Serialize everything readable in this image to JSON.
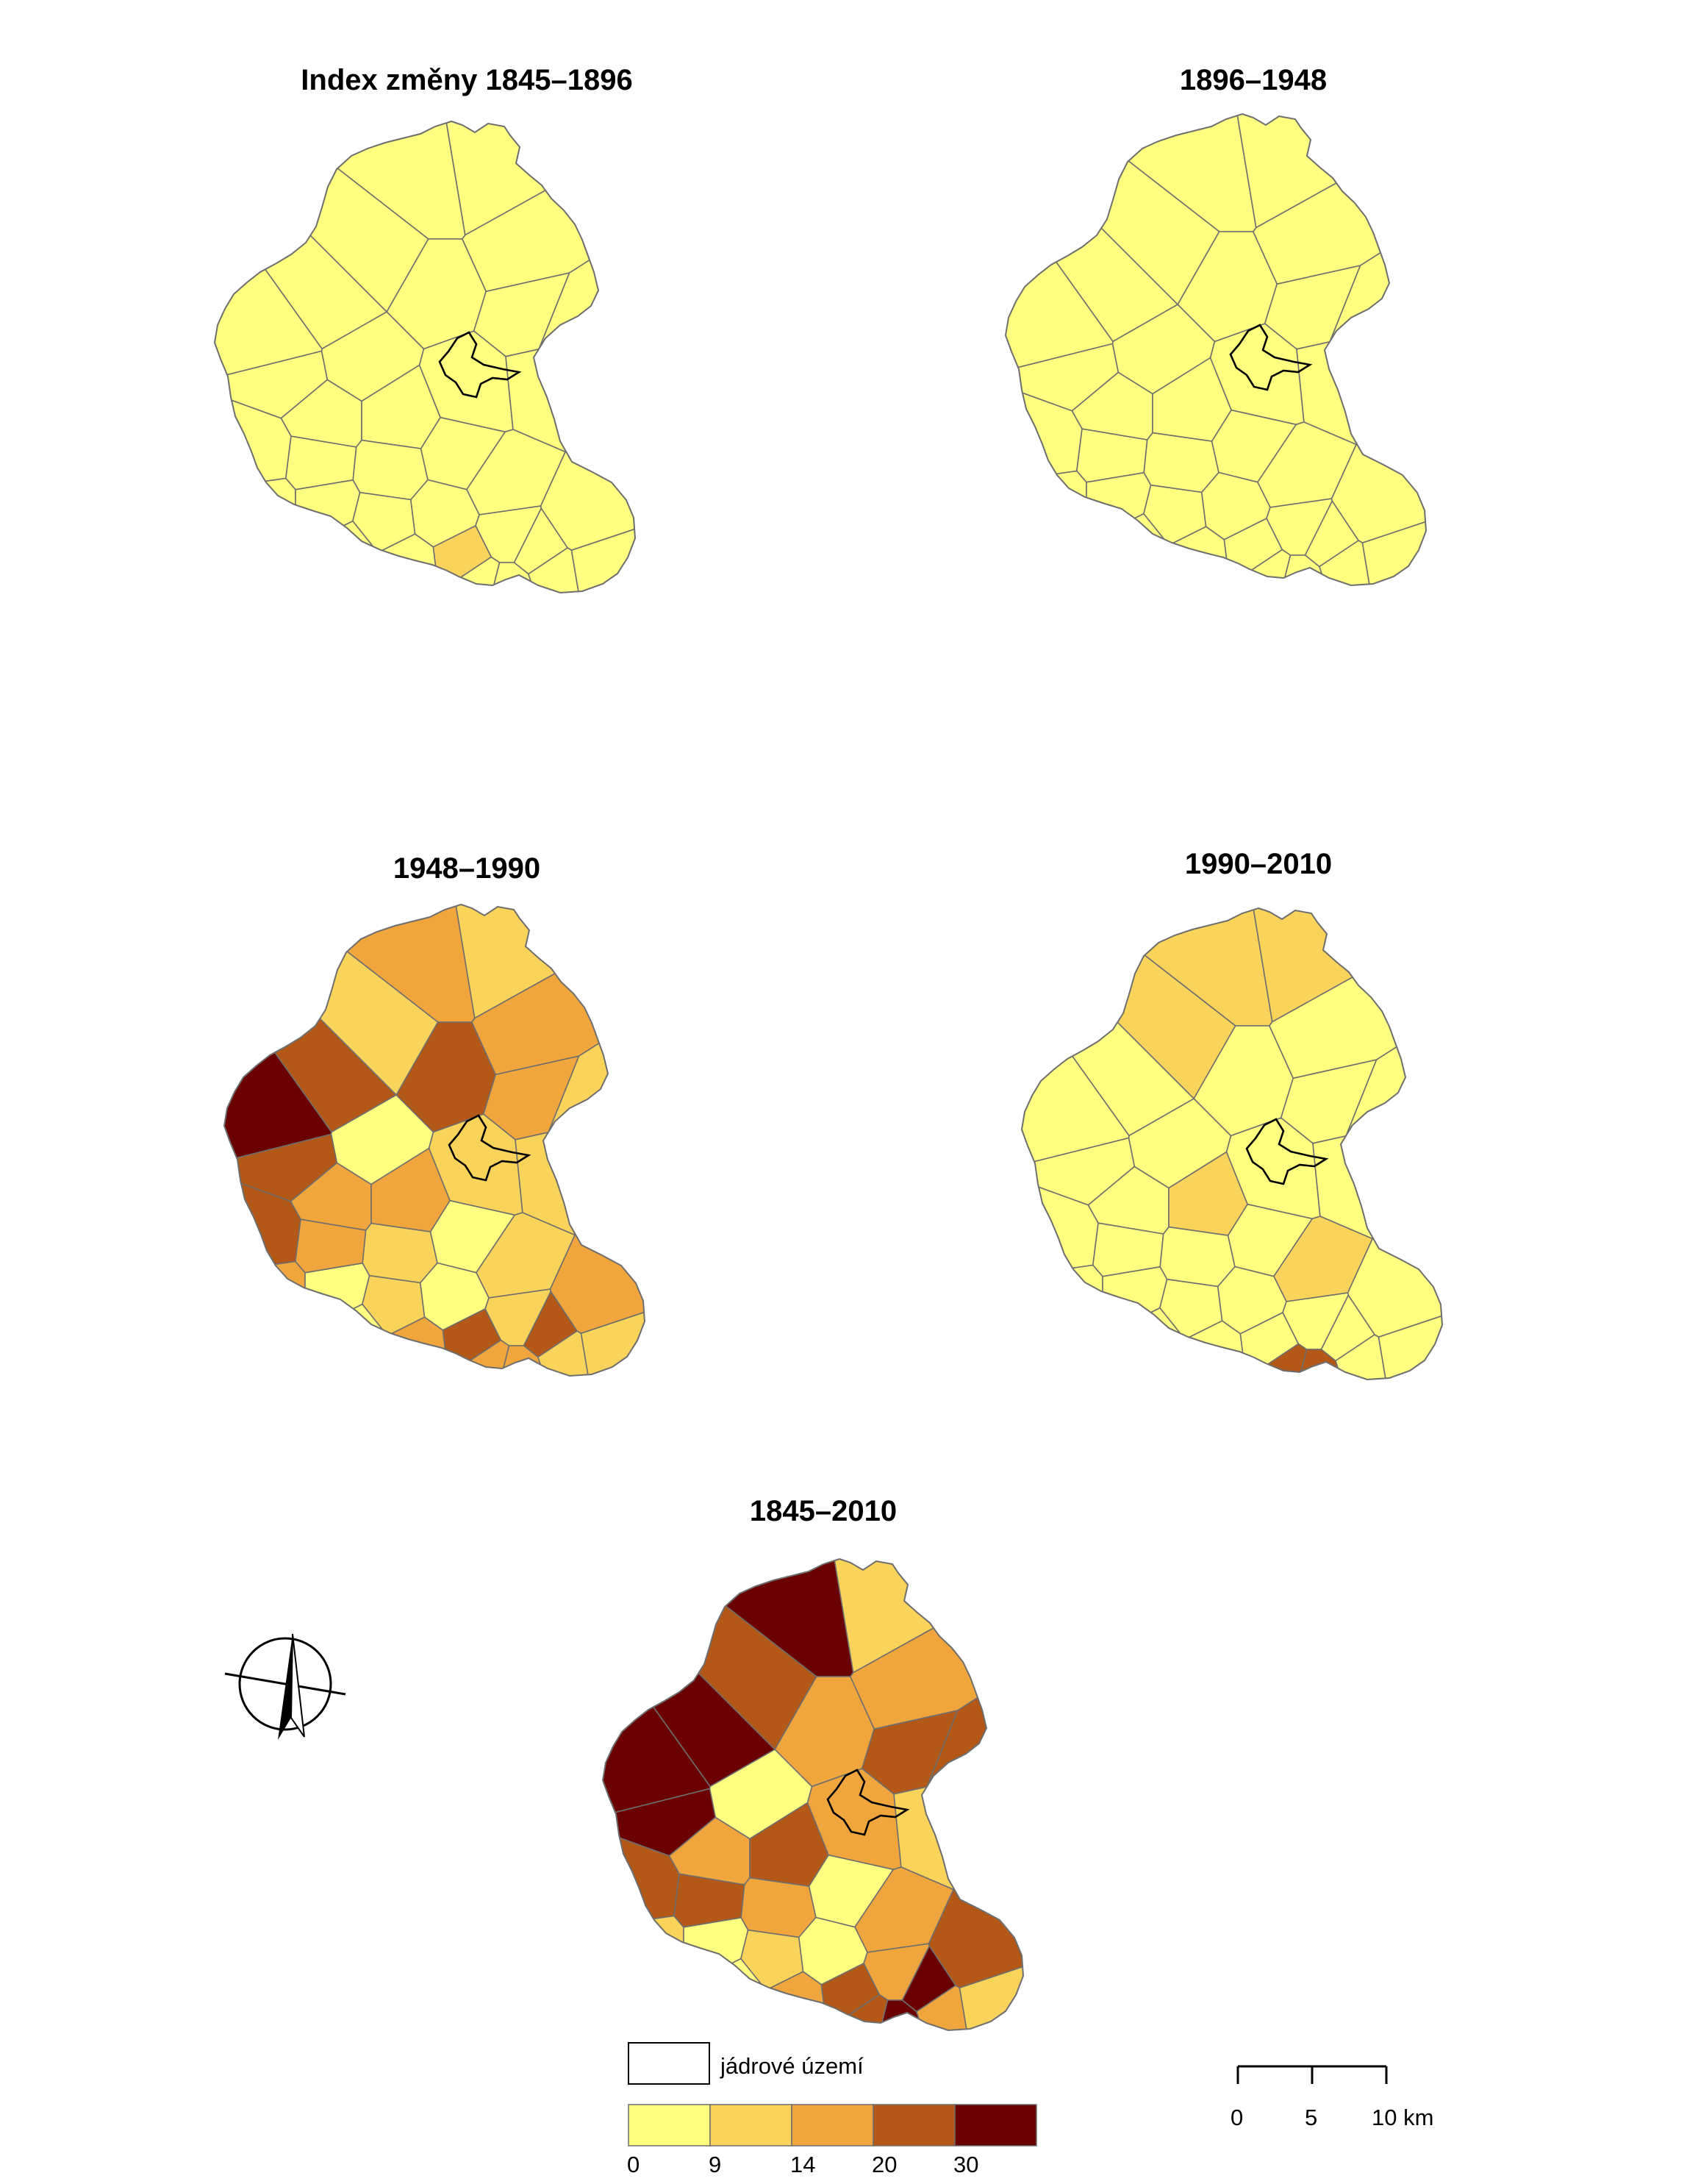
{
  "palette": {
    "c0": "#ffff80",
    "c1": "#fad35a",
    "c2": "#f0a63c",
    "c3": "#b35817",
    "c4": "#6b0000",
    "outline": "#6e6e6e",
    "core_outline": "#000000"
  },
  "maps": [
    {
      "id": "m1845_1896",
      "title": "Index změny 1845–1896",
      "classes": [
        0,
        0,
        0,
        0,
        0,
        0,
        0,
        0,
        0,
        0,
        0,
        0,
        0,
        0,
        0,
        0,
        0,
        0,
        0,
        0,
        0,
        0,
        0,
        0,
        0,
        0,
        0,
        0,
        1,
        0,
        0,
        0,
        0,
        0,
        0,
        0
      ]
    },
    {
      "id": "m1896_1948",
      "title": "1896–1948",
      "classes": [
        0,
        0,
        0,
        0,
        0,
        0,
        0,
        0,
        0,
        0,
        0,
        0,
        0,
        0,
        0,
        0,
        0,
        0,
        0,
        0,
        0,
        0,
        0,
        0,
        0,
        0,
        0,
        0,
        0,
        0,
        0,
        0,
        0,
        0,
        0,
        0
      ]
    },
    {
      "id": "m1948_1990",
      "title": "1948–1990",
      "classes": [
        2,
        1,
        1,
        3,
        2,
        3,
        0,
        2,
        1,
        3,
        2,
        2,
        1,
        1,
        1,
        4,
        3,
        2,
        1,
        0,
        1,
        2,
        0,
        1,
        0,
        1,
        0,
        2,
        3,
        2,
        1,
        2,
        3,
        2,
        2,
        1
      ]
    },
    {
      "id": "m1990_2010",
      "title": "1990–2010",
      "classes": [
        1,
        1,
        1,
        0,
        0,
        0,
        0,
        0,
        0,
        0,
        0,
        1,
        0,
        0,
        0,
        0,
        0,
        0,
        0,
        0,
        1,
        0,
        0,
        0,
        0,
        0,
        0,
        0,
        0,
        0,
        0,
        3,
        0,
        3,
        3,
        0
      ]
    },
    {
      "id": "m1845_2010",
      "title": "1845–2010",
      "classes": [
        4,
        3,
        1,
        4,
        2,
        2,
        0,
        3,
        3,
        4,
        2,
        3,
        2,
        1,
        2,
        4,
        3,
        3,
        2,
        0,
        2,
        1,
        0,
        1,
        0,
        2,
        0,
        2,
        3,
        3,
        2,
        3,
        4,
        4,
        2,
        1
      ]
    }
  ],
  "legend": {
    "core_label": "jádrové území",
    "breaks": [
      "0",
      "9",
      "14",
      "20",
      "30"
    ]
  },
  "scalebar": {
    "labels": [
      "0",
      "5",
      "10 km"
    ]
  },
  "north_arrow": "north-arrow-icon"
}
